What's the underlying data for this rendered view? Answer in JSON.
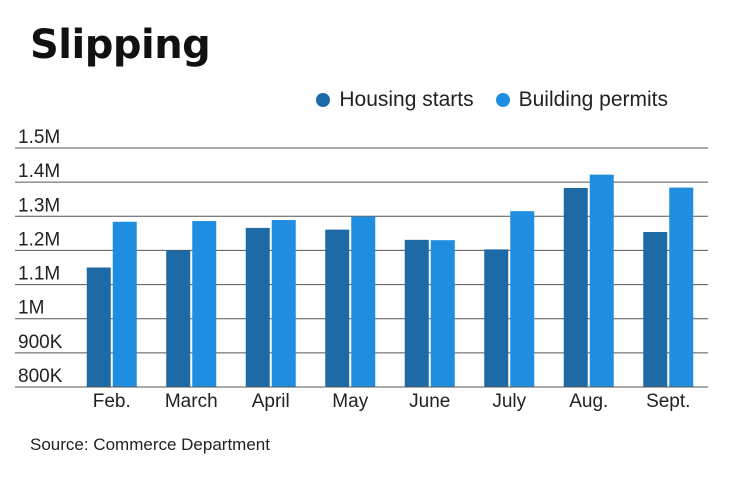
{
  "title": "Slipping",
  "source": "Source: Commerce Department",
  "legend": [
    {
      "name": "Housing starts",
      "color": "#1e6aa6"
    },
    {
      "name": "Building permits",
      "color": "#1f8ee0"
    }
  ],
  "chart_data": {
    "type": "bar",
    "title": "Slipping",
    "categories": [
      "Feb.",
      "March",
      "April",
      "May",
      "June",
      "July",
      "Aug.",
      "Sept."
    ],
    "series": [
      {
        "name": "Housing starts",
        "color": "#1e6aa6",
        "values": [
          1150000,
          1200000,
          1266000,
          1261000,
          1231000,
          1203000,
          1383000,
          1254000
        ]
      },
      {
        "name": "Building permits",
        "color": "#1f8ee0",
        "values": [
          1284000,
          1286000,
          1289000,
          1299000,
          1230000,
          1315000,
          1422000,
          1384000
        ]
      }
    ],
    "y_ticks": [
      "800K",
      "900K",
      "1M",
      "1.1M",
      "1.2M",
      "1.3M",
      "1.4M",
      "1.5M"
    ],
    "y_tick_values": [
      800000,
      900000,
      1000000,
      1100000,
      1200000,
      1300000,
      1400000,
      1500000
    ],
    "ylim": [
      800000,
      1500000
    ],
    "grid": true,
    "legend_position": "top-right",
    "xlabel": "",
    "ylabel": ""
  }
}
